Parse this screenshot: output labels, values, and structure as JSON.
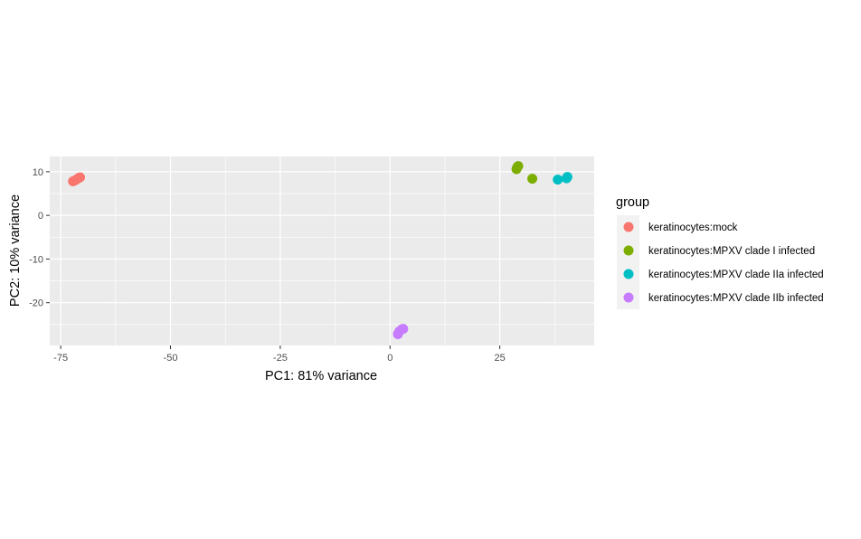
{
  "chart_data": {
    "type": "scatter",
    "xlabel": "PC1: 81% variance",
    "ylabel": "PC2: 10% variance",
    "xlim": [
      -77.5,
      46.5
    ],
    "ylim": [
      -29.8,
      13.5
    ],
    "x_ticks": [
      -75,
      -50,
      -25,
      0,
      25
    ],
    "y_ticks": [
      -20,
      -10,
      0,
      10
    ],
    "grid": true,
    "legend": {
      "title": "group",
      "placement": "right"
    },
    "series": [
      {
        "name": "keratinocytes:mock",
        "color": "#F8766D",
        "points": [
          [
            -72.2,
            7.8
          ],
          [
            -71.6,
            8.1
          ],
          [
            -71.0,
            8.5
          ],
          [
            -70.6,
            8.7
          ]
        ]
      },
      {
        "name": "keratinocytes:MPXV clade I infected",
        "color": "#7CAE00",
        "points": [
          [
            28.8,
            10.6
          ],
          [
            29.0,
            11.1
          ],
          [
            29.2,
            11.3
          ],
          [
            32.4,
            8.4
          ]
        ]
      },
      {
        "name": "keratinocytes:MPXV clade IIa infected",
        "color": "#00BFC4",
        "points": [
          [
            38.2,
            8.2
          ],
          [
            40.2,
            8.5
          ],
          [
            40.4,
            8.8
          ]
        ]
      },
      {
        "name": "keratinocytes:MPXV clade IIb infected",
        "color": "#C77CFF",
        "points": [
          [
            1.8,
            -27.2
          ],
          [
            2.1,
            -26.6
          ],
          [
            2.7,
            -26.1
          ],
          [
            3.0,
            -26.0
          ]
        ]
      }
    ]
  }
}
